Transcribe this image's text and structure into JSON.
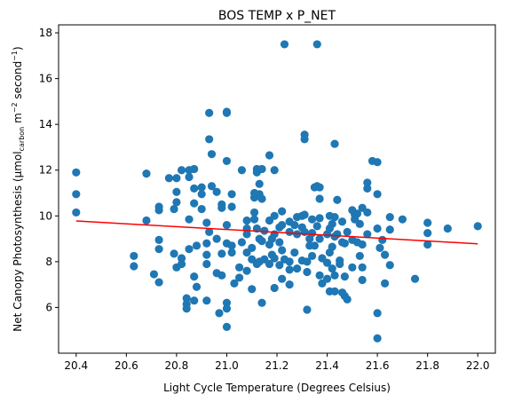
{
  "chart_data": {
    "type": "scatter",
    "title": "BOS TEMP x P_NET",
    "xlabel": "Light Cycle Temperature (Degrees Celsius)",
    "ylabel": {
      "prefix": "Net Canopy Photosynthesis (μmol",
      "sub": "carbon",
      "mid1": " m",
      "sup1": "−2",
      "mid2": " second",
      "sup2": "−1",
      "suffix": ")"
    },
    "xlim": [
      20.33,
      22.07
    ],
    "ylim": [
      4.0,
      18.35
    ],
    "xticks": [
      20.4,
      20.6,
      20.8,
      21.0,
      21.2,
      21.4,
      21.6,
      21.8,
      22.0
    ],
    "xtick_labels": [
      "20.4",
      "20.6",
      "20.8",
      "21.0",
      "21.2",
      "21.4",
      "21.6",
      "21.8",
      "22.0"
    ],
    "yticks": [
      6,
      8,
      10,
      12,
      14,
      16,
      18
    ],
    "ytick_labels": [
      "6",
      "8",
      "10",
      "12",
      "14",
      "16",
      "18"
    ],
    "grid": false,
    "point_color": "#1f77b4",
    "trend_color": "#ff0000",
    "trend": {
      "x": [
        20.4,
        22.0
      ],
      "y": [
        9.78,
        8.78
      ]
    },
    "points": [
      [
        20.4,
        11.9
      ],
      [
        20.4,
        10.95
      ],
      [
        20.4,
        10.15
      ],
      [
        20.63,
        8.25
      ],
      [
        20.63,
        7.8
      ],
      [
        20.68,
        11.85
      ],
      [
        20.68,
        9.8
      ],
      [
        20.71,
        7.45
      ],
      [
        20.73,
        7.1
      ],
      [
        20.73,
        8.95
      ],
      [
        20.73,
        8.55
      ],
      [
        20.73,
        10.4
      ],
      [
        20.73,
        10.25
      ],
      [
        20.77,
        11.65
      ],
      [
        20.79,
        8.35
      ],
      [
        20.79,
        10.3
      ],
      [
        20.8,
        11.65
      ],
      [
        20.8,
        11.05
      ],
      [
        20.8,
        10.6
      ],
      [
        20.8,
        7.75
      ],
      [
        20.82,
        12.0
      ],
      [
        20.82,
        8.15
      ],
      [
        20.82,
        7.9
      ],
      [
        20.84,
        6.4
      ],
      [
        20.84,
        6.15
      ],
      [
        20.84,
        5.95
      ],
      [
        20.85,
        12.0
      ],
      [
        20.85,
        11.7
      ],
      [
        20.85,
        9.85
      ],
      [
        20.85,
        8.55
      ],
      [
        20.87,
        12.05
      ],
      [
        20.87,
        11.2
      ],
      [
        20.87,
        10.55
      ],
      [
        20.87,
        7.35
      ],
      [
        20.87,
        6.3
      ],
      [
        20.88,
        8.7
      ],
      [
        20.88,
        6.9
      ],
      [
        20.9,
        11.25
      ],
      [
        20.9,
        10.95
      ],
      [
        20.9,
        10.3
      ],
      [
        20.92,
        9.7
      ],
      [
        20.92,
        8.8
      ],
      [
        20.92,
        8.3
      ],
      [
        20.92,
        7.9
      ],
      [
        20.92,
        6.3
      ],
      [
        20.93,
        14.5
      ],
      [
        20.93,
        13.35
      ],
      [
        20.93,
        9.3
      ],
      [
        20.94,
        12.7
      ],
      [
        20.94,
        11.3
      ],
      [
        20.96,
        11.05
      ],
      [
        20.96,
        9.0
      ],
      [
        20.96,
        7.5
      ],
      [
        20.97,
        5.75
      ],
      [
        20.98,
        10.5
      ],
      [
        20.98,
        10.35
      ],
      [
        20.98,
        8.35
      ],
      [
        20.98,
        7.4
      ],
      [
        21.0,
        14.55
      ],
      [
        21.0,
        14.5
      ],
      [
        21.0,
        12.4
      ],
      [
        21.0,
        9.6
      ],
      [
        21.0,
        8.8
      ],
      [
        21.0,
        6.2
      ],
      [
        21.0,
        5.15
      ],
      [
        21.0,
        5.95
      ],
      [
        21.02,
        10.95
      ],
      [
        21.02,
        10.4
      ],
      [
        21.02,
        8.7
      ],
      [
        21.02,
        8.4
      ],
      [
        21.03,
        7.05
      ],
      [
        21.05,
        7.75
      ],
      [
        21.05,
        7.3
      ],
      [
        21.06,
        12.0
      ],
      [
        21.06,
        8.85
      ],
      [
        21.08,
        9.8
      ],
      [
        21.08,
        9.45
      ],
      [
        21.08,
        9.2
      ],
      [
        21.08,
        8.4
      ],
      [
        21.08,
        7.6
      ],
      [
        21.1,
        8.6
      ],
      [
        21.1,
        8.1
      ],
      [
        21.1,
        6.8
      ],
      [
        21.11,
        11.0
      ],
      [
        21.11,
        10.8
      ],
      [
        21.11,
        10.15
      ],
      [
        21.11,
        9.85
      ],
      [
        21.12,
        12.05
      ],
      [
        21.12,
        11.9
      ],
      [
        21.12,
        9.45
      ],
      [
        21.12,
        7.9
      ],
      [
        21.13,
        11.4
      ],
      [
        21.13,
        10.95
      ],
      [
        21.13,
        9.0
      ],
      [
        21.13,
        8.0
      ],
      [
        21.14,
        12.05
      ],
      [
        21.14,
        10.75
      ],
      [
        21.14,
        8.9
      ],
      [
        21.14,
        6.2
      ],
      [
        21.15,
        9.35
      ],
      [
        21.15,
        8.1
      ],
      [
        21.17,
        12.65
      ],
      [
        21.17,
        9.8
      ],
      [
        21.17,
        8.75
      ],
      [
        21.17,
        7.9
      ],
      [
        21.18,
        9.0
      ],
      [
        21.18,
        8.3
      ],
      [
        21.19,
        12.0
      ],
      [
        21.19,
        10.0
      ],
      [
        21.19,
        9.2
      ],
      [
        21.19,
        8.15
      ],
      [
        21.19,
        6.85
      ],
      [
        21.21,
        9.5
      ],
      [
        21.21,
        8.85
      ],
      [
        21.21,
        7.85
      ],
      [
        21.22,
        10.2
      ],
      [
        21.22,
        9.6
      ],
      [
        21.22,
        8.5
      ],
      [
        21.22,
        7.25
      ],
      [
        21.23,
        17.5
      ],
      [
        21.23,
        8.1
      ],
      [
        21.25,
        9.75
      ],
      [
        21.25,
        9.3
      ],
      [
        21.25,
        8.0
      ],
      [
        21.25,
        7.65
      ],
      [
        21.25,
        7.0
      ],
      [
        21.27,
        9.6
      ],
      [
        21.27,
        8.4
      ],
      [
        21.28,
        9.95
      ],
      [
        21.28,
        9.2
      ],
      [
        21.28,
        7.7
      ],
      [
        21.3,
        10.0
      ],
      [
        21.3,
        9.5
      ],
      [
        21.3,
        8.05
      ],
      [
        21.31,
        13.55
      ],
      [
        21.31,
        13.35
      ],
      [
        21.31,
        10.05
      ],
      [
        21.31,
        9.3
      ],
      [
        21.32,
        8.0
      ],
      [
        21.32,
        7.55
      ],
      [
        21.32,
        5.9
      ],
      [
        21.33,
        9.0
      ],
      [
        21.33,
        8.7
      ],
      [
        21.34,
        9.85
      ],
      [
        21.34,
        9.25
      ],
      [
        21.34,
        8.25
      ],
      [
        21.35,
        11.25
      ],
      [
        21.35,
        8.7
      ],
      [
        21.36,
        17.5
      ],
      [
        21.36,
        11.3
      ],
      [
        21.36,
        9.55
      ],
      [
        21.37,
        11.25
      ],
      [
        21.37,
        10.75
      ],
      [
        21.37,
        9.9
      ],
      [
        21.37,
        9.0
      ],
      [
        21.37,
        7.4
      ],
      [
        21.38,
        8.15
      ],
      [
        21.38,
        7.05
      ],
      [
        21.4,
        9.2
      ],
      [
        21.4,
        7.95
      ],
      [
        21.4,
        7.25
      ],
      [
        21.41,
        10.0
      ],
      [
        21.41,
        9.45
      ],
      [
        21.41,
        8.4
      ],
      [
        21.41,
        6.7
      ],
      [
        21.42,
        9.65
      ],
      [
        21.42,
        8.65
      ],
      [
        21.42,
        7.7
      ],
      [
        21.43,
        13.15
      ],
      [
        21.43,
        9.95
      ],
      [
        21.43,
        9.1
      ],
      [
        21.43,
        7.4
      ],
      [
        21.43,
        6.7
      ],
      [
        21.44,
        10.7
      ],
      [
        21.44,
        9.2
      ],
      [
        21.45,
        8.05
      ],
      [
        21.45,
        7.9
      ],
      [
        21.46,
        9.75
      ],
      [
        21.46,
        8.85
      ],
      [
        21.46,
        6.65
      ],
      [
        21.47,
        8.8
      ],
      [
        21.47,
        7.35
      ],
      [
        21.47,
        6.5
      ],
      [
        21.48,
        9.3
      ],
      [
        21.48,
        6.35
      ],
      [
        21.5,
        10.25
      ],
      [
        21.5,
        8.95
      ],
      [
        21.5,
        7.75
      ],
      [
        21.51,
        10.05
      ],
      [
        21.51,
        9.85
      ],
      [
        21.52,
        10.1
      ],
      [
        21.52,
        8.85
      ],
      [
        21.53,
        9.65
      ],
      [
        21.53,
        8.25
      ],
      [
        21.54,
        10.35
      ],
      [
        21.54,
        8.75
      ],
      [
        21.54,
        7.75
      ],
      [
        21.54,
        7.2
      ],
      [
        21.56,
        11.45
      ],
      [
        21.56,
        11.2
      ],
      [
        21.56,
        10.15
      ],
      [
        21.56,
        9.2
      ],
      [
        21.58,
        12.4
      ],
      [
        21.6,
        12.35
      ],
      [
        21.6,
        10.95
      ],
      [
        21.6,
        9.45
      ],
      [
        21.6,
        5.75
      ],
      [
        21.6,
        4.65
      ],
      [
        21.61,
        8.6
      ],
      [
        21.62,
        8.95
      ],
      [
        21.63,
        8.3
      ],
      [
        21.63,
        7.05
      ],
      [
        21.65,
        9.95
      ],
      [
        21.65,
        9.4
      ],
      [
        21.65,
        7.85
      ],
      [
        21.7,
        9.85
      ],
      [
        21.75,
        7.25
      ],
      [
        21.8,
        9.7
      ],
      [
        21.8,
        9.25
      ],
      [
        21.8,
        8.75
      ],
      [
        21.88,
        9.45
      ],
      [
        22.0,
        9.55
      ]
    ]
  }
}
